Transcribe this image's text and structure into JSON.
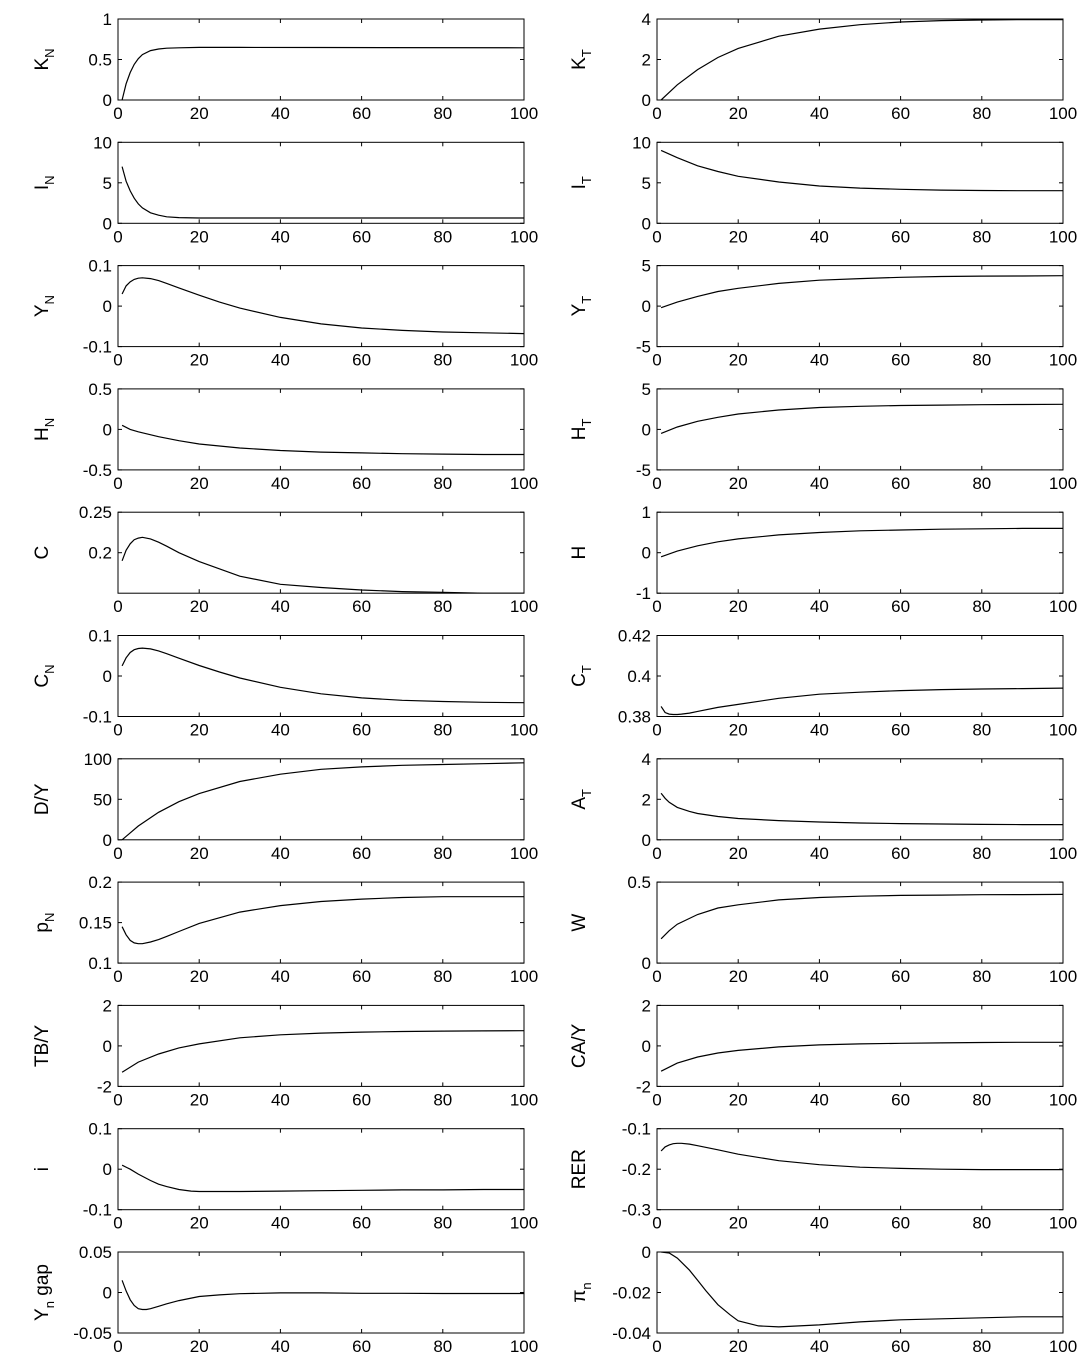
{
  "chart_data": [
    {
      "type": "line",
      "ylabel": "K",
      "ylabel_sub": "N",
      "ylim": [
        0,
        1
      ],
      "yticks": [
        "0",
        "0.5",
        "1"
      ],
      "xlim": [
        0,
        100
      ],
      "xticks": [
        "0",
        "20",
        "40",
        "60",
        "80",
        "100"
      ],
      "x": [
        1,
        2,
        3,
        4,
        5,
        6,
        8,
        10,
        12,
        15,
        20,
        30,
        50,
        100
      ],
      "y": [
        0,
        0.2,
        0.34,
        0.44,
        0.51,
        0.56,
        0.61,
        0.63,
        0.64,
        0.645,
        0.65,
        0.65,
        0.648,
        0.645
      ]
    },
    {
      "type": "line",
      "ylabel": "K",
      "ylabel_sub": "T",
      "ylim": [
        0,
        4
      ],
      "yticks": [
        "0",
        "2",
        "4"
      ],
      "xlim": [
        0,
        100
      ],
      "xticks": [
        "0",
        "20",
        "40",
        "60",
        "80",
        "100"
      ],
      "x": [
        1,
        5,
        10,
        15,
        20,
        30,
        40,
        50,
        60,
        70,
        80,
        90,
        100
      ],
      "y": [
        0,
        0.75,
        1.5,
        2.1,
        2.55,
        3.15,
        3.5,
        3.72,
        3.85,
        3.92,
        3.95,
        3.97,
        3.97
      ]
    },
    {
      "type": "line",
      "ylabel": "I",
      "ylabel_sub": "N",
      "ylim": [
        0,
        10
      ],
      "yticks": [
        "0",
        "5",
        "10"
      ],
      "xlim": [
        0,
        100
      ],
      "xticks": [
        "0",
        "20",
        "40",
        "60",
        "80",
        "100"
      ],
      "x": [
        1,
        2,
        3,
        4,
        5,
        6,
        8,
        10,
        12,
        15,
        20,
        30,
        50,
        100
      ],
      "y": [
        7,
        5.2,
        4,
        3.1,
        2.4,
        1.9,
        1.3,
        1,
        0.8,
        0.7,
        0.65,
        0.65,
        0.65,
        0.65
      ]
    },
    {
      "type": "line",
      "ylabel": "I",
      "ylabel_sub": "T",
      "ylim": [
        0,
        10
      ],
      "yticks": [
        "0",
        "5",
        "10"
      ],
      "xlim": [
        0,
        100
      ],
      "xticks": [
        "0",
        "20",
        "40",
        "60",
        "80",
        "100"
      ],
      "x": [
        1,
        5,
        10,
        15,
        20,
        30,
        40,
        50,
        60,
        70,
        80,
        90,
        100
      ],
      "y": [
        9,
        8.1,
        7.1,
        6.4,
        5.8,
        5.1,
        4.6,
        4.35,
        4.2,
        4.1,
        4.05,
        4.03,
        4.02
      ]
    },
    {
      "type": "line",
      "ylabel": "Y",
      "ylabel_sub": "N",
      "ylim": [
        -0.1,
        0.1
      ],
      "yticks": [
        "-0.1",
        "0",
        "0.1"
      ],
      "xlim": [
        0,
        100
      ],
      "xticks": [
        "0",
        "20",
        "40",
        "60",
        "80",
        "100"
      ],
      "x": [
        1,
        2,
        3,
        4,
        5,
        6,
        8,
        10,
        12,
        15,
        20,
        25,
        30,
        40,
        50,
        60,
        70,
        80,
        90,
        100
      ],
      "y": [
        0.03,
        0.05,
        0.06,
        0.066,
        0.069,
        0.07,
        0.068,
        0.063,
        0.056,
        0.045,
        0.027,
        0.01,
        -0.005,
        -0.028,
        -0.044,
        -0.054,
        -0.06,
        -0.064,
        -0.066,
        -0.068
      ]
    },
    {
      "type": "line",
      "ylabel": "Y",
      "ylabel_sub": "T",
      "ylim": [
        -5,
        5
      ],
      "yticks": [
        "-5",
        "0",
        "5"
      ],
      "xlim": [
        0,
        100
      ],
      "xticks": [
        "0",
        "20",
        "40",
        "60",
        "80",
        "100"
      ],
      "x": [
        1,
        5,
        10,
        15,
        20,
        30,
        40,
        50,
        60,
        70,
        80,
        90,
        100
      ],
      "y": [
        -0.2,
        0.5,
        1.2,
        1.8,
        2.2,
        2.8,
        3.2,
        3.4,
        3.55,
        3.65,
        3.7,
        3.72,
        3.75
      ]
    },
    {
      "type": "line",
      "ylabel": "H",
      "ylabel_sub": "N",
      "ylim": [
        -0.5,
        0.5
      ],
      "yticks": [
        "-0.5",
        "0",
        "0.5"
      ],
      "xlim": [
        0,
        100
      ],
      "xticks": [
        "0",
        "20",
        "40",
        "60",
        "80",
        "100"
      ],
      "x": [
        1,
        3,
        5,
        10,
        15,
        20,
        30,
        40,
        50,
        60,
        70,
        80,
        90,
        100
      ],
      "y": [
        0.05,
        0.0,
        -0.03,
        -0.09,
        -0.14,
        -0.18,
        -0.23,
        -0.26,
        -0.28,
        -0.29,
        -0.3,
        -0.305,
        -0.31,
        -0.31
      ]
    },
    {
      "type": "line",
      "ylabel": "H",
      "ylabel_sub": "T",
      "ylim": [
        -5,
        5
      ],
      "yticks": [
        "-5",
        "0",
        "5"
      ],
      "xlim": [
        0,
        100
      ],
      "xticks": [
        "0",
        "20",
        "40",
        "60",
        "80",
        "100"
      ],
      "x": [
        1,
        5,
        10,
        15,
        20,
        30,
        40,
        50,
        60,
        70,
        80,
        90,
        100
      ],
      "y": [
        -0.5,
        0.3,
        1.0,
        1.5,
        1.9,
        2.4,
        2.7,
        2.85,
        2.95,
        3.0,
        3.05,
        3.07,
        3.1
      ]
    },
    {
      "type": "line",
      "ylabel": "C",
      "ylabel_sub": "",
      "ylim": [
        0.15,
        0.25
      ],
      "yticks": [
        "0.2",
        "0.25"
      ],
      "xlim": [
        0,
        100
      ],
      "xticks": [
        "0",
        "20",
        "40",
        "60",
        "80",
        "100"
      ],
      "x": [
        1,
        2,
        3,
        4,
        5,
        6,
        8,
        10,
        12,
        15,
        20,
        30,
        40,
        50,
        60,
        70,
        80,
        90,
        100
      ],
      "y": [
        0.19,
        0.203,
        0.211,
        0.216,
        0.218,
        0.219,
        0.217,
        0.213,
        0.208,
        0.2,
        0.189,
        0.171,
        0.161,
        0.157,
        0.154,
        0.152,
        0.151,
        0.15,
        0.15
      ]
    },
    {
      "type": "line",
      "ylabel": "H",
      "ylabel_sub": "",
      "ylim": [
        -1,
        1
      ],
      "yticks": [
        "-1",
        "0",
        "1"
      ],
      "xlim": [
        0,
        100
      ],
      "xticks": [
        "0",
        "20",
        "40",
        "60",
        "80",
        "100"
      ],
      "x": [
        1,
        5,
        10,
        15,
        20,
        30,
        40,
        50,
        60,
        70,
        80,
        90,
        100
      ],
      "y": [
        -0.1,
        0.04,
        0.17,
        0.27,
        0.34,
        0.44,
        0.5,
        0.54,
        0.56,
        0.58,
        0.59,
        0.6,
        0.6
      ]
    },
    {
      "type": "line",
      "ylabel": "C",
      "ylabel_sub": "N",
      "ylim": [
        -0.1,
        0.1
      ],
      "yticks": [
        "-0.1",
        "0",
        "0.1"
      ],
      "xlim": [
        0,
        100
      ],
      "xticks": [
        "0",
        "20",
        "40",
        "60",
        "80",
        "100"
      ],
      "x": [
        1,
        2,
        3,
        4,
        5,
        6,
        8,
        10,
        12,
        15,
        20,
        25,
        30,
        40,
        50,
        60,
        70,
        80,
        90,
        100
      ],
      "y": [
        0.025,
        0.045,
        0.058,
        0.065,
        0.068,
        0.069,
        0.067,
        0.062,
        0.055,
        0.044,
        0.026,
        0.01,
        -0.005,
        -0.028,
        -0.044,
        -0.054,
        -0.06,
        -0.063,
        -0.065,
        -0.066
      ]
    },
    {
      "type": "line",
      "ylabel": "C",
      "ylabel_sub": "T",
      "ylim": [
        0.38,
        0.42
      ],
      "yticks": [
        "0.38",
        "0.4",
        "0.42"
      ],
      "xlim": [
        0,
        100
      ],
      "xticks": [
        "0",
        "20",
        "40",
        "60",
        "80",
        "100"
      ],
      "x": [
        1,
        2,
        3,
        4,
        5,
        6,
        8,
        10,
        15,
        20,
        30,
        40,
        50,
        60,
        70,
        80,
        90,
        100
      ],
      "y": [
        0.385,
        0.382,
        0.3812,
        0.381,
        0.381,
        0.3812,
        0.3817,
        0.3825,
        0.3845,
        0.386,
        0.389,
        0.391,
        0.392,
        0.3928,
        0.3933,
        0.3936,
        0.3938,
        0.394
      ]
    },
    {
      "type": "line",
      "ylabel": "D/Y",
      "ylabel_sub": "",
      "ylim": [
        0,
        100
      ],
      "yticks": [
        "0",
        "50",
        "100"
      ],
      "xlim": [
        0,
        100
      ],
      "xticks": [
        "0",
        "20",
        "40",
        "60",
        "80",
        "100"
      ],
      "x": [
        1,
        5,
        10,
        15,
        20,
        30,
        40,
        50,
        60,
        70,
        80,
        90,
        100
      ],
      "y": [
        0,
        17,
        34,
        47,
        57,
        72,
        81,
        87,
        90,
        92,
        93,
        94,
        95
      ]
    },
    {
      "type": "line",
      "ylabel": "A",
      "ylabel_sub": "T",
      "ylim": [
        0,
        4
      ],
      "yticks": [
        "0",
        "2",
        "4"
      ],
      "xlim": [
        0,
        100
      ],
      "xticks": [
        "0",
        "20",
        "40",
        "60",
        "80",
        "100"
      ],
      "x": [
        1,
        2,
        3,
        5,
        8,
        10,
        15,
        20,
        30,
        40,
        50,
        60,
        70,
        80,
        90,
        100
      ],
      "y": [
        2.3,
        2.05,
        1.85,
        1.6,
        1.4,
        1.3,
        1.15,
        1.05,
        0.95,
        0.88,
        0.83,
        0.8,
        0.78,
        0.76,
        0.75,
        0.75
      ]
    },
    {
      "type": "line",
      "ylabel": "p",
      "ylabel_sub": "N",
      "ylim": [
        0.1,
        0.2
      ],
      "yticks": [
        "0.1",
        "0.15",
        "0.2"
      ],
      "xlim": [
        0,
        100
      ],
      "xticks": [
        "0",
        "20",
        "40",
        "60",
        "80",
        "100"
      ],
      "x": [
        1,
        2,
        3,
        4,
        5,
        6,
        8,
        10,
        12,
        15,
        20,
        30,
        40,
        50,
        60,
        70,
        80,
        90,
        100
      ],
      "y": [
        0.145,
        0.135,
        0.128,
        0.125,
        0.124,
        0.124,
        0.126,
        0.129,
        0.133,
        0.139,
        0.149,
        0.163,
        0.171,
        0.176,
        0.179,
        0.181,
        0.182,
        0.182,
        0.182
      ]
    },
    {
      "type": "line",
      "ylabel": "W",
      "ylabel_sub": "",
      "ylim": [
        0,
        0.5
      ],
      "yticks": [
        "0",
        "0.5"
      ],
      "xlim": [
        0,
        100
      ],
      "xticks": [
        "0",
        "20",
        "40",
        "60",
        "80",
        "100"
      ],
      "x": [
        1,
        3,
        5,
        10,
        15,
        20,
        30,
        40,
        50,
        60,
        70,
        80,
        90,
        100
      ],
      "y": [
        0.15,
        0.2,
        0.24,
        0.3,
        0.34,
        0.36,
        0.39,
        0.405,
        0.413,
        0.418,
        0.42,
        0.422,
        0.423,
        0.424
      ]
    },
    {
      "type": "line",
      "ylabel": "TB/Y",
      "ylabel_sub": "",
      "ylim": [
        -2,
        2
      ],
      "yticks": [
        "-2",
        "0",
        "2"
      ],
      "xlim": [
        0,
        100
      ],
      "xticks": [
        "0",
        "20",
        "40",
        "60",
        "80",
        "100"
      ],
      "x": [
        1,
        5,
        10,
        15,
        20,
        30,
        40,
        50,
        60,
        70,
        80,
        90,
        100
      ],
      "y": [
        -1.3,
        -0.8,
        -0.4,
        -0.1,
        0.1,
        0.4,
        0.55,
        0.63,
        0.68,
        0.71,
        0.73,
        0.74,
        0.75
      ]
    },
    {
      "type": "line",
      "ylabel": "CA/Y",
      "ylabel_sub": "",
      "ylim": [
        -2,
        2
      ],
      "yticks": [
        "-2",
        "0",
        "2"
      ],
      "xlim": [
        0,
        100
      ],
      "xticks": [
        "0",
        "20",
        "40",
        "60",
        "80",
        "100"
      ],
      "x": [
        1,
        5,
        10,
        15,
        20,
        30,
        40,
        50,
        60,
        70,
        80,
        90,
        100
      ],
      "y": [
        -1.25,
        -0.85,
        -0.55,
        -0.35,
        -0.22,
        -0.05,
        0.05,
        0.1,
        0.13,
        0.15,
        0.17,
        0.18,
        0.18
      ]
    },
    {
      "type": "line",
      "ylabel": "i",
      "ylabel_sub": "",
      "ylim": [
        -0.1,
        0.1
      ],
      "yticks": [
        "-0.1",
        "0",
        "0.1"
      ],
      "xlim": [
        0,
        100
      ],
      "xticks": [
        "0",
        "20",
        "40",
        "60",
        "80",
        "100"
      ],
      "x": [
        1,
        3,
        5,
        8,
        10,
        12,
        15,
        18,
        20,
        25,
        30,
        40,
        50,
        60,
        70,
        80,
        90,
        100
      ],
      "y": [
        0.01,
        0.0,
        -0.012,
        -0.028,
        -0.037,
        -0.043,
        -0.05,
        -0.054,
        -0.055,
        -0.055,
        -0.055,
        -0.054,
        -0.053,
        -0.052,
        -0.051,
        -0.051,
        -0.05,
        -0.05
      ]
    },
    {
      "type": "line",
      "ylabel": "RER",
      "ylabel_sub": "",
      "ylim": [
        -0.3,
        -0.1
      ],
      "yticks": [
        "-0.3",
        "-0.2",
        "-0.1"
      ],
      "xlim": [
        0,
        100
      ],
      "xticks": [
        "0",
        "20",
        "40",
        "60",
        "80",
        "100"
      ],
      "x": [
        1,
        2,
        3,
        4,
        5,
        6,
        8,
        10,
        15,
        20,
        30,
        40,
        50,
        60,
        70,
        80,
        90,
        100
      ],
      "y": [
        -0.155,
        -0.145,
        -0.14,
        -0.137,
        -0.136,
        -0.136,
        -0.138,
        -0.142,
        -0.152,
        -0.163,
        -0.179,
        -0.189,
        -0.195,
        -0.198,
        -0.2,
        -0.201,
        -0.201,
        -0.201
      ]
    },
    {
      "type": "line",
      "ylabel": "Y",
      "ylabel_sub": "n",
      "ylabel_suffix": " gap",
      "ylim": [
        -0.05,
        0.05
      ],
      "yticks": [
        "-0.05",
        "0",
        "0.05"
      ],
      "xlim": [
        0,
        100
      ],
      "xticks": [
        "0",
        "20",
        "40",
        "60",
        "80",
        "100"
      ],
      "x": [
        1,
        2,
        3,
        4,
        5,
        6,
        7,
        8,
        10,
        12,
        15,
        20,
        25,
        30,
        40,
        50,
        60,
        70,
        80,
        90,
        100
      ],
      "y": [
        0.015,
        0.002,
        -0.009,
        -0.016,
        -0.02,
        -0.021,
        -0.021,
        -0.02,
        -0.017,
        -0.014,
        -0.01,
        -0.005,
        -0.003,
        -0.0015,
        -0.0005,
        -0.0005,
        -0.001,
        -0.001,
        -0.0012,
        -0.0012,
        -0.0012
      ]
    },
    {
      "type": "line",
      "ylabel": "π",
      "ylabel_sub": "n",
      "ylim": [
        -0.04,
        0
      ],
      "yticks": [
        "-0.04",
        "-0.02",
        "0"
      ],
      "xlim": [
        0,
        100
      ],
      "xticks": [
        "0",
        "20",
        "40",
        "60",
        "80",
        "100"
      ],
      "x": [
        1,
        3,
        5,
        8,
        10,
        12,
        15,
        18,
        20,
        25,
        30,
        40,
        50,
        60,
        70,
        80,
        90,
        100
      ],
      "y": [
        0,
        -0.0005,
        -0.003,
        -0.009,
        -0.014,
        -0.019,
        -0.026,
        -0.031,
        -0.034,
        -0.0365,
        -0.037,
        -0.036,
        -0.0345,
        -0.0335,
        -0.033,
        -0.0325,
        -0.032,
        -0.032
      ]
    }
  ]
}
